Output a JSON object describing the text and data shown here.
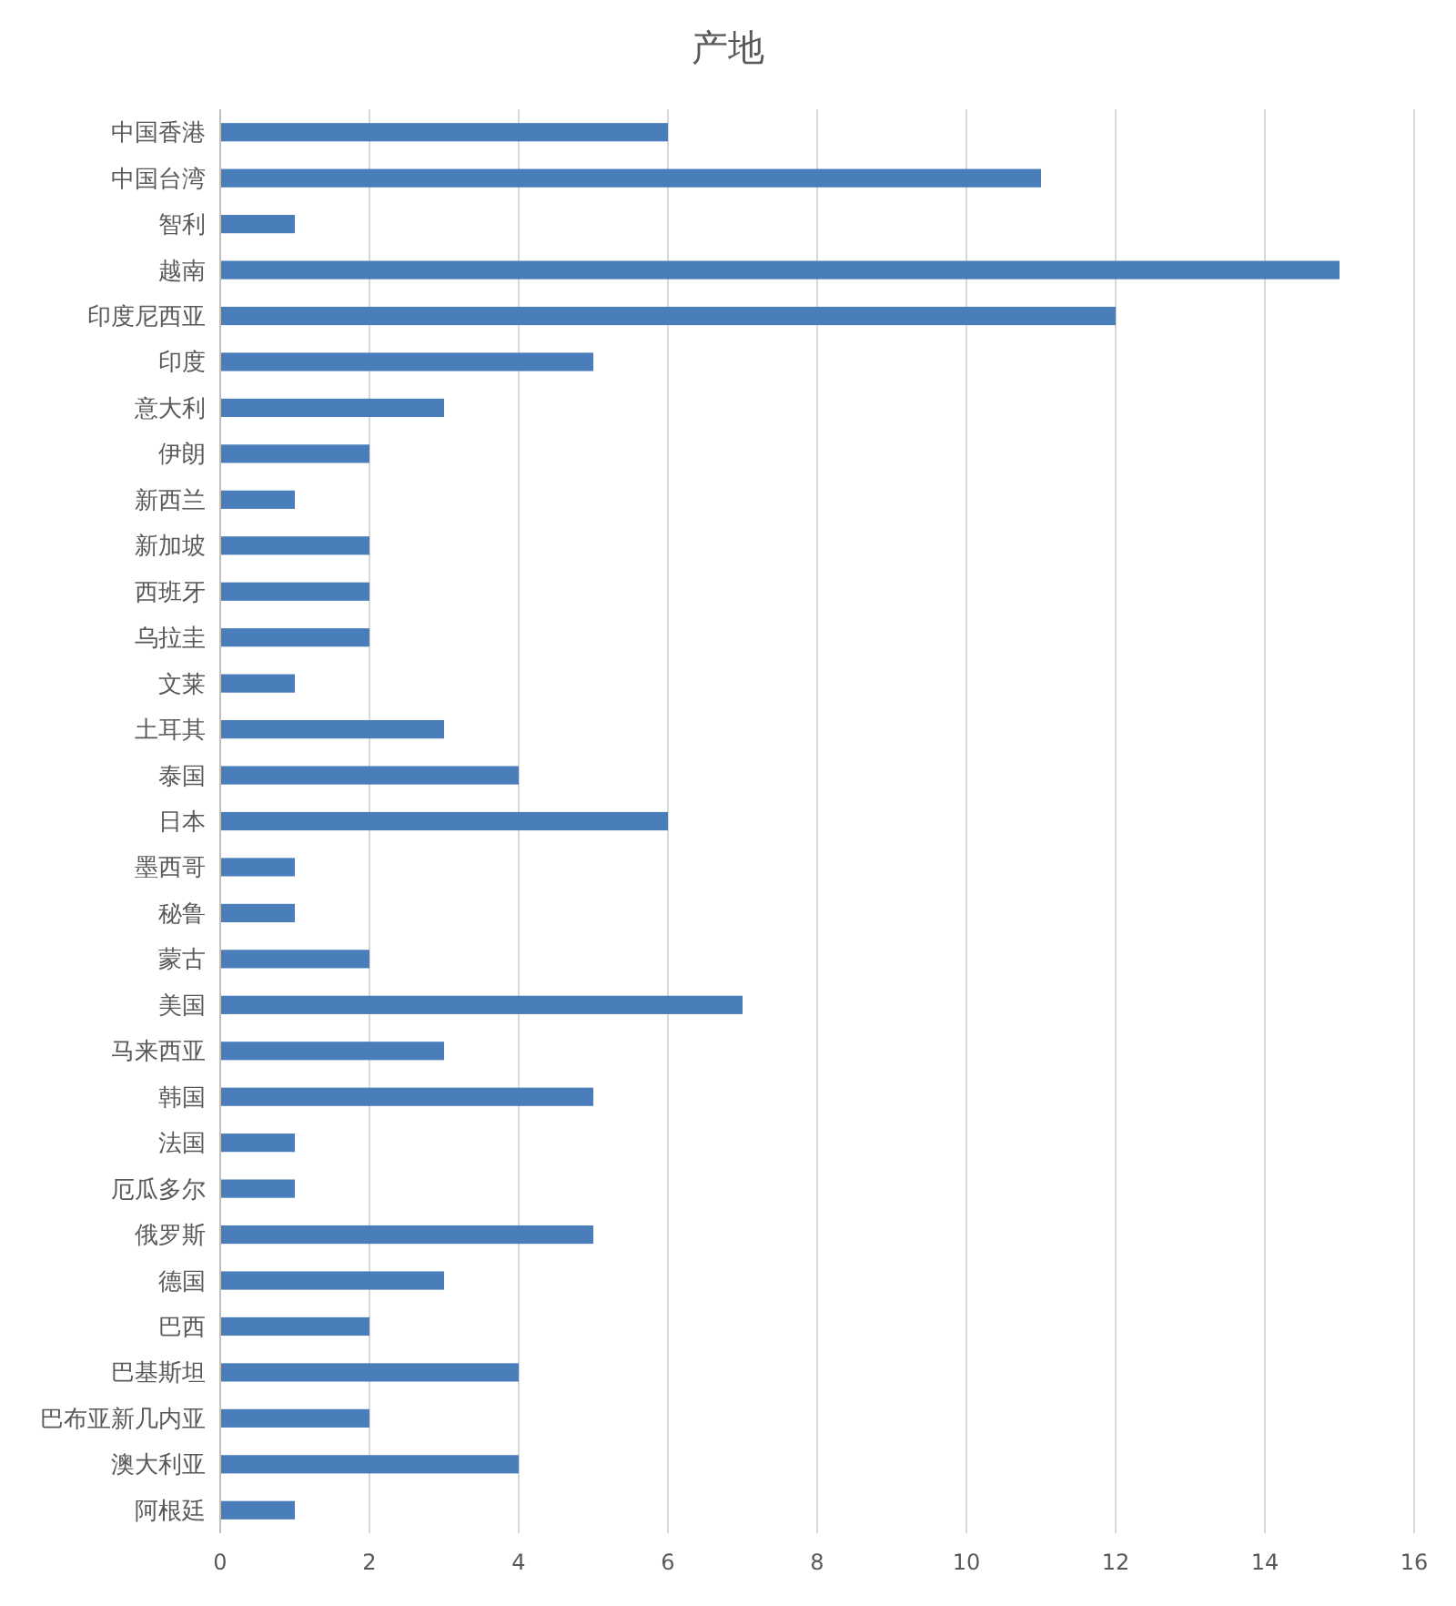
{
  "chart_data": {
    "type": "bar",
    "orientation": "horizontal",
    "title": "产地",
    "categories": [
      "中国香港",
      "中国台湾",
      "智利",
      "越南",
      "印度尼西亚",
      "印度",
      "意大利",
      "伊朗",
      "新西兰",
      "新加坡",
      "西班牙",
      "乌拉圭",
      "文莱",
      "土耳其",
      "泰国",
      "日本",
      "墨西哥",
      "秘鲁",
      "蒙古",
      "美国",
      "马来西亚",
      "韩国",
      "法国",
      "厄瓜多尔",
      "俄罗斯",
      "德国",
      "巴西",
      "巴基斯坦",
      "巴布亚新几内亚",
      "澳大利亚",
      "阿根廷"
    ],
    "values": [
      6,
      11,
      1,
      15,
      12,
      5,
      3,
      2,
      1,
      2,
      2,
      2,
      1,
      3,
      4,
      6,
      1,
      1,
      2,
      7,
      3,
      5,
      1,
      1,
      5,
      3,
      2,
      4,
      2,
      4,
      1
    ],
    "color": "#4a7ebb",
    "xlim": [
      0,
      16
    ],
    "xticks": [
      0,
      2,
      4,
      6,
      8,
      10,
      12,
      14,
      16
    ],
    "grid": "x"
  }
}
